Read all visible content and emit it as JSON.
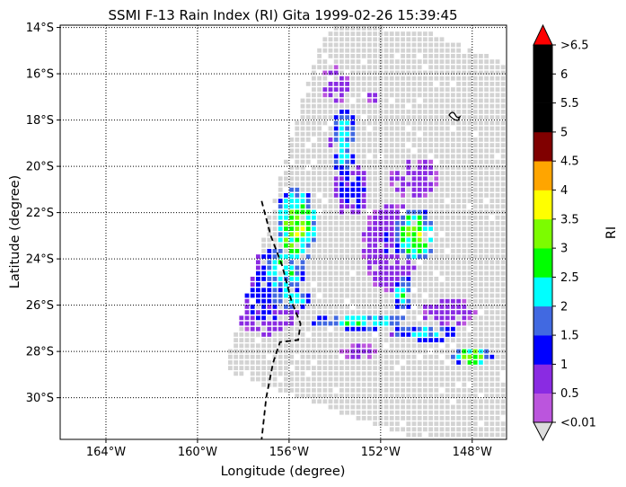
{
  "title": "SSMI F-13 Rain Index (RI) Gita 1999-02-26 15:39:45",
  "xlabel": "Longitude (degree)",
  "ylabel": "Latitude (degree)",
  "colorbar": {
    "label": "RI",
    "tick_labels": [
      "<0.01",
      "0.5",
      "1",
      "1.5",
      "2",
      "2.5",
      "3",
      "3.5",
      "4",
      "4.5",
      "5",
      "5.5",
      "6",
      ">6.5"
    ],
    "colors": [
      "#bb55dd",
      "#8a2be2",
      "#0000ff",
      "#4169e1",
      "#00ffff",
      "#00ff00",
      "#7cfc00",
      "#ffff00",
      "#ffa500",
      "#800000",
      "#000000",
      "#000000",
      "#000000"
    ],
    "under_color": "#dddddd",
    "over_color": "#ff0000"
  },
  "chart_data": {
    "type": "heatmap",
    "title": "SSMI F-13 Rain Index (RI) Gita 1999-02-26 15:39:45",
    "xlabel": "Longitude (degree)",
    "ylabel": "Latitude (degree)",
    "x_ticks": [
      "164°W",
      "160°W",
      "156°W",
      "152°W",
      "148°W"
    ],
    "y_ticks": [
      "14°S",
      "16°S",
      "18°S",
      "20°S",
      "22°S",
      "24°S",
      "26°S",
      "28°S",
      "30°S"
    ],
    "xlim": [
      -166,
      -146.5
    ],
    "ylim": [
      -31.8,
      -13.9
    ],
    "grid": true,
    "no_rain_color": "#d3d3d3",
    "rain_areas": [
      {
        "center": [
          -155.7,
          -22.6
        ],
        "rx": 0.9,
        "ry": 1.7,
        "peak": 3.2
      },
      {
        "center": [
          -156.3,
          -24.5
        ],
        "rx": 1.0,
        "ry": 1.1,
        "peak": 2.4
      },
      {
        "center": [
          -156.0,
          -25.7
        ],
        "rx": 1.0,
        "ry": 0.6,
        "peak": 2.2
      },
      {
        "center": [
          -153.6,
          -18.9
        ],
        "rx": 0.6,
        "ry": 1.5,
        "peak": 2.2
      },
      {
        "center": [
          -153.3,
          -21.0
        ],
        "rx": 0.8,
        "ry": 1.2,
        "peak": 1.2
      },
      {
        "center": [
          -150.5,
          -23.0
        ],
        "rx": 0.9,
        "ry": 1.2,
        "peak": 3.0
      },
      {
        "center": [
          -151.0,
          -25.5
        ],
        "rx": 0.4,
        "ry": 0.8,
        "peak": 2.3
      },
      {
        "center": [
          -152.8,
          -26.7
        ],
        "rx": 2.2,
        "ry": 0.35,
        "peak": 2.6
      },
      {
        "center": [
          -150.0,
          -27.2
        ],
        "rx": 1.6,
        "ry": 0.35,
        "peak": 2.1
      },
      {
        "center": [
          -148.0,
          -28.2
        ],
        "rx": 0.9,
        "ry": 0.4,
        "peak": 3.1
      },
      {
        "center": [
          -157.0,
          -25.5
        ],
        "rx": 1.6,
        "ry": 1.8,
        "peak": 1.1
      },
      {
        "center": [
          -150.5,
          -20.5
        ],
        "rx": 1.1,
        "ry": 0.9,
        "peak": 0.8
      },
      {
        "center": [
          -154.0,
          -16.5
        ],
        "rx": 0.6,
        "ry": 0.8,
        "peak": 0.8
      },
      {
        "center": [
          -152.3,
          -17.0
        ],
        "rx": 0.3,
        "ry": 0.3,
        "peak": 0.8
      },
      {
        "center": [
          -151.5,
          -23.5
        ],
        "rx": 1.3,
        "ry": 2.0,
        "peak": 0.9
      },
      {
        "center": [
          -149.0,
          -26.3
        ],
        "rx": 1.2,
        "ry": 0.6,
        "peak": 0.8
      },
      {
        "center": [
          -153.0,
          -28.0
        ],
        "rx": 0.8,
        "ry": 0.4,
        "peak": 0.6
      },
      {
        "center": [
          -156.7,
          -22.8
        ],
        "rx": 0.12,
        "ry": 0.12,
        "peak": 5.2
      }
    ],
    "track_line": [
      [
        -157.2,
        -21.5
      ],
      [
        -156.8,
        -23.0
      ],
      [
        -156.3,
        -24.3
      ],
      [
        -155.9,
        -25.8
      ],
      [
        -155.5,
        -26.8
      ],
      [
        -155.6,
        -27.5
      ],
      [
        -156.4,
        -27.6
      ],
      [
        -156.7,
        -28.5
      ],
      [
        -157.0,
        -30.0
      ],
      [
        -157.2,
        -31.8
      ]
    ]
  }
}
